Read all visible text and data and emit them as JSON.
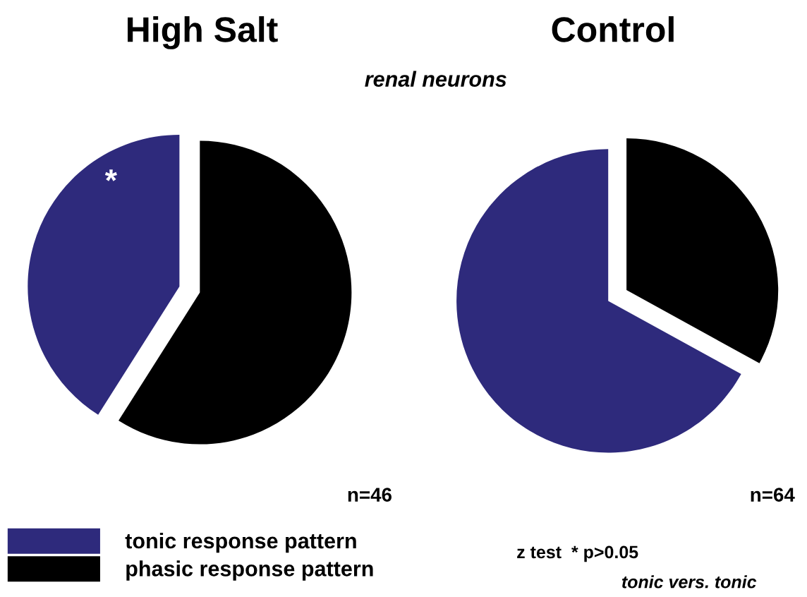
{
  "chart_data": [
    {
      "type": "pie",
      "title": "High Salt",
      "subtitle": "renal neurons",
      "categories": [
        "tonic response pattern",
        "phasic response pattern"
      ],
      "values": [
        41,
        59
      ],
      "colors": [
        "#2e2a7c",
        "#000000"
      ],
      "legend": "bottom left",
      "annotations": [
        "*",
        "n=46"
      ]
    },
    {
      "type": "pie",
      "title": "Control",
      "categories": [
        null,
        null
      ],
      "values": [
        67,
        33
      ],
      "colors": [
        "#2e2a7c",
        "#000000"
      ],
      "annotations": [
        "n=64",
        "z test  * p>0.05",
        "tonic vers. tonic"
      ]
    }
  ]
}
